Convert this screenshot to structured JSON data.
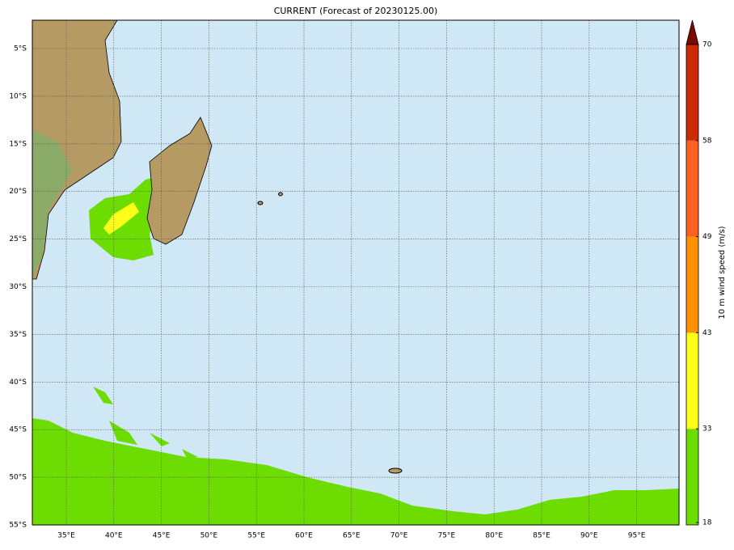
{
  "title": "CURRENT (Forecast of 20230125.00)",
  "map": {
    "lat_labels": [
      "5°S",
      "10°S",
      "15°S",
      "20°S",
      "25°S",
      "30°S",
      "35°S",
      "40°S",
      "45°S",
      "50°S",
      "55°S"
    ],
    "lon_labels": [
      "35°E",
      "40°E",
      "45°E",
      "50°E",
      "55°E",
      "60°E",
      "65°E",
      "70°E",
      "75°E",
      "80°E",
      "85°E",
      "90°E",
      "95°E"
    ]
  },
  "colorbar": {
    "label": "10 m wind speed (m/s)",
    "ticks": [
      18,
      33,
      43,
      49,
      58,
      70
    ],
    "colors": [
      "#6ddc00",
      "#ffff1a",
      "#ff9000",
      "#ff6020",
      "#cc2a06"
    ],
    "extend_color": "#7a0a00"
  }
}
